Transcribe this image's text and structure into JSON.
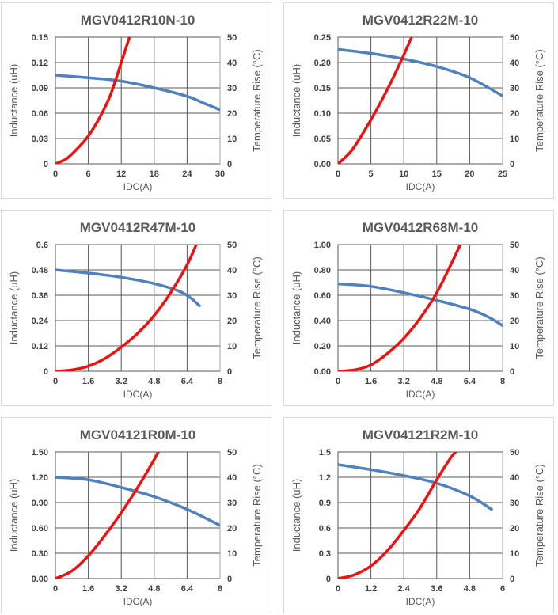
{
  "chart_data": [
    {
      "type": "line",
      "title": "MGV0412R10N-10",
      "xlabel": "IDC(A)",
      "ylabel": "Inductance (uH)",
      "y2label": "Temperature Rise (°C)",
      "xlim": [
        0,
        30
      ],
      "xticks": [
        "0",
        "6",
        "12",
        "18",
        "24",
        "30"
      ],
      "ylim": [
        0,
        0.15
      ],
      "yticks": [
        "0",
        "0.03",
        "0.06",
        "0.09",
        "0.12",
        "0.15"
      ],
      "y2lim": [
        0,
        50
      ],
      "y2ticks": [
        "0",
        "10",
        "20",
        "30",
        "40",
        "50"
      ],
      "series": [
        {
          "name": "Inductance",
          "axis": "left",
          "x": [
            0,
            6,
            12,
            18,
            24,
            27,
            30
          ],
          "y": [
            0.105,
            0.102,
            0.098,
            0.09,
            0.08,
            0.072,
            0.064
          ]
        },
        {
          "name": "Temperature Rise",
          "axis": "right",
          "x": [
            0,
            2,
            4,
            6,
            8,
            10,
            12,
            13.5
          ],
          "y": [
            0,
            2,
            6,
            11,
            18,
            27,
            40,
            50
          ]
        }
      ]
    },
    {
      "type": "line",
      "title": "MGV0412R22M-10",
      "xlabel": "IDC(A)",
      "ylabel": "Inductance (uH)",
      "y2label": "Temperature Rise (°C)",
      "xlim": [
        0,
        25
      ],
      "xticks": [
        "0",
        "5",
        "10",
        "15",
        "20",
        "25"
      ],
      "ylim": [
        0,
        0.25
      ],
      "yticks": [
        "0.00",
        "0.05",
        "0.10",
        "0.15",
        "0.20",
        "0.25"
      ],
      "y2lim": [
        0,
        50
      ],
      "y2ticks": [
        "0",
        "10",
        "20",
        "30",
        "40",
        "50"
      ],
      "series": [
        {
          "name": "Inductance",
          "axis": "left",
          "x": [
            0,
            5,
            10,
            15,
            20,
            25
          ],
          "y": [
            0.226,
            0.218,
            0.207,
            0.192,
            0.17,
            0.134
          ]
        },
        {
          "name": "Temperature Rise",
          "axis": "right",
          "x": [
            0,
            2,
            4,
            6,
            8,
            10,
            11.5
          ],
          "y": [
            0,
            5,
            13,
            22,
            32,
            43,
            52
          ]
        }
      ]
    },
    {
      "type": "line",
      "title": "MGV0412R47M-10",
      "xlabel": "IDC(A)",
      "ylabel": "Inductance (uH)",
      "y2label": "Temperature Rise (°C)",
      "xlim": [
        0,
        8
      ],
      "xticks": [
        "0",
        "1.6",
        "3.2",
        "4.8",
        "6.4",
        "8"
      ],
      "ylim": [
        0,
        0.6
      ],
      "yticks": [
        "0",
        "0.12",
        "0.24",
        "0.36",
        "0.48",
        "0.6"
      ],
      "y2lim": [
        0,
        50
      ],
      "y2ticks": [
        "0",
        "10",
        "20",
        "30",
        "40",
        "50"
      ],
      "series": [
        {
          "name": "Inductance",
          "axis": "left",
          "x": [
            0,
            1.6,
            3.2,
            4.8,
            6.0,
            6.6,
            7.0
          ],
          "y": [
            0.48,
            0.465,
            0.445,
            0.415,
            0.38,
            0.345,
            0.31
          ]
        },
        {
          "name": "Temperature Rise",
          "axis": "right",
          "x": [
            0,
            0.8,
            1.6,
            2.4,
            3.2,
            4.0,
            4.8,
            5.6,
            6.4,
            6.9
          ],
          "y": [
            0,
            0.5,
            2,
            5,
            9.5,
            15,
            22,
            31,
            42,
            51
          ]
        }
      ]
    },
    {
      "type": "line",
      "title": "MGV0412R68M-10",
      "xlabel": "IDC(A)",
      "ylabel": "Inductance (uH)",
      "y2label": "Temperature Rise (°C)",
      "xlim": [
        0,
        8
      ],
      "xticks": [
        "0",
        "1.6",
        "3.2",
        "4.8",
        "6.4",
        "8"
      ],
      "ylim": [
        0,
        1
      ],
      "yticks": [
        "0.00",
        "0.20",
        "0.40",
        "0.60",
        "0.80",
        "1.00"
      ],
      "y2lim": [
        0,
        50
      ],
      "y2ticks": [
        "0",
        "10",
        "20",
        "30",
        "40",
        "50"
      ],
      "series": [
        {
          "name": "Inductance",
          "axis": "left",
          "x": [
            0,
            1.6,
            3.2,
            4.8,
            6.4,
            7.4,
            8.0
          ],
          "y": [
            0.69,
            0.67,
            0.62,
            0.56,
            0.49,
            0.42,
            0.36
          ]
        },
        {
          "name": "Temperature Rise",
          "axis": "right",
          "x": [
            0,
            0.8,
            1.6,
            2.4,
            3.2,
            4.0,
            4.8,
            5.6,
            6.0
          ],
          "y": [
            0,
            0.5,
            2.5,
            7,
            13,
            21,
            31,
            44,
            51
          ]
        }
      ]
    },
    {
      "type": "line",
      "title": "MGV04121R0M-10",
      "xlabel": "IDC(A)",
      "ylabel": "Inductance (uH)",
      "y2label": "Temperature Rise (°C)",
      "xlim": [
        0,
        8
      ],
      "xticks": [
        "0",
        "1.6",
        "3.2",
        "4.8",
        "6.4",
        "8"
      ],
      "ylim": [
        0,
        1.5
      ],
      "yticks": [
        "0.00",
        "0.30",
        "0.60",
        "0.90",
        "1.20",
        "1.50"
      ],
      "y2lim": [
        0,
        50
      ],
      "y2ticks": [
        "0",
        "10",
        "20",
        "30",
        "40",
        "50"
      ],
      "series": [
        {
          "name": "Inductance",
          "axis": "left",
          "x": [
            0,
            1.6,
            3.2,
            4.8,
            6.4,
            8.0
          ],
          "y": [
            1.2,
            1.17,
            1.08,
            0.97,
            0.82,
            0.63
          ]
        },
        {
          "name": "Temperature Rise",
          "axis": "right",
          "x": [
            0,
            0.8,
            1.6,
            2.4,
            3.2,
            4.0,
            4.8,
            5.0
          ],
          "y": [
            0,
            3,
            9,
            17,
            26,
            36,
            47,
            50
          ]
        }
      ]
    },
    {
      "type": "line",
      "title": "MGV04121R2M-10",
      "xlabel": "IDC(A)",
      "ylabel": "Inductance (uH)",
      "y2label": "Temperature Rise (°C)",
      "xlim": [
        0,
        6
      ],
      "xticks": [
        "0",
        "1.2",
        "2.4",
        "3.6",
        "4.8",
        "6"
      ],
      "ylim": [
        0,
        1.5
      ],
      "yticks": [
        "0",
        "0.3",
        "0.6",
        "0.9",
        "1.2",
        "1.5"
      ],
      "y2lim": [
        0,
        50
      ],
      "y2ticks": [
        "0",
        "10",
        "20",
        "30",
        "40",
        "50"
      ],
      "series": [
        {
          "name": "Inductance",
          "axis": "left",
          "x": [
            0,
            1.2,
            2.4,
            3.6,
            4.8,
            5.6
          ],
          "y": [
            1.35,
            1.29,
            1.22,
            1.13,
            0.98,
            0.82
          ]
        },
        {
          "name": "Temperature Rise",
          "axis": "right",
          "x": [
            0,
            0.6,
            1.2,
            1.8,
            2.4,
            3.0,
            3.6,
            4.2,
            4.6
          ],
          "y": [
            0,
            1.5,
            5,
            11,
            19,
            28,
            39,
            49,
            52
          ]
        }
      ]
    }
  ]
}
